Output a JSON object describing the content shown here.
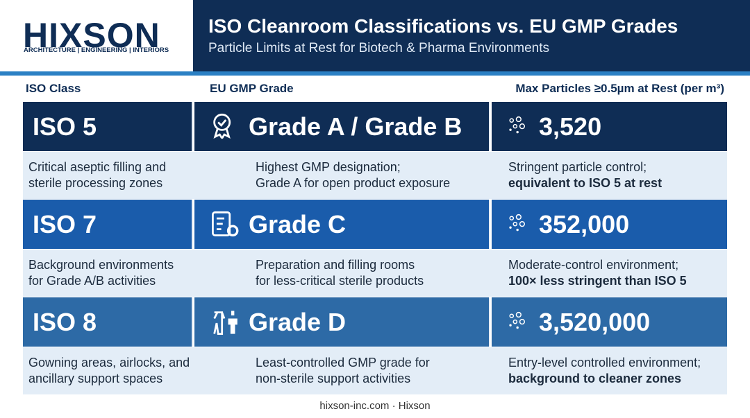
{
  "header": {
    "logo": "HIXSON",
    "tagline": "ARCHITECTURE | ENGINEERING | INTERIORS",
    "title": "ISO Cleanroom Classifications vs. EU GMP Grades",
    "subtitle": "Particle Limits at Rest for Biotech & Pharma Environments"
  },
  "table": {
    "columns": [
      "ISO Class",
      "EU GMP Grade",
      "Max Particles ≥0.5µm at Rest (per m³)"
    ],
    "rows": [
      {
        "iso": "ISO 5",
        "grade": "Grade A / Grade B",
        "particles": "3,520",
        "iso_desc": [
          "Critical aseptic filling and",
          "sterile processing zones"
        ],
        "grade_desc": [
          "Highest GMP designation;",
          "Grade A for open product exposure"
        ],
        "particle_note": "Stringent particle control;",
        "particle_emphasis": "equivalent to ISO 5 at rest"
      },
      {
        "iso": "ISO 7",
        "grade": "Grade C",
        "particles": "352,000",
        "iso_desc": [
          "Background environments",
          "for Grade A/B activities"
        ],
        "grade_desc": [
          "Preparation and filling rooms",
          "for less-critical sterile products"
        ],
        "particle_note": "Moderate-control environment;",
        "particle_emphasis": "100× less stringent than ISO 5"
      },
      {
        "iso": "ISO 8",
        "grade": "Grade D",
        "particles": "3,520,000",
        "iso_desc": [
          "Gowning areas, airlocks, and",
          "ancillary support spaces"
        ],
        "grade_desc": [
          "Least-controlled GMP grade for",
          "non-sterile support activities"
        ],
        "particle_note": "Entry-level controlled environment;",
        "particle_emphasis": "background to cleaner zones"
      }
    ]
  },
  "footer": "hixson-inc.com · Hixson"
}
